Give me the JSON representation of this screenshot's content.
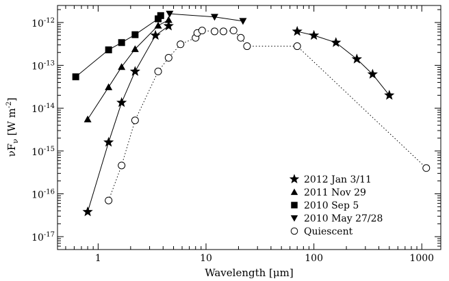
{
  "chart_data": {
    "type": "scatter",
    "xlabel": "Wavelength [μm]",
    "ylabel": "νF",
    "ylabel_sub": "ν",
    "ylabel_unit": " [W m",
    "ylabel_sup": "-2",
    "ylabel_close": "]",
    "xscale": "log",
    "yscale": "log",
    "xlim": [
      0.42,
      1500
    ],
    "ylim": [
      5e-18,
      2.5e-12
    ],
    "x_ticks": [
      {
        "value": 1,
        "label": "1"
      },
      {
        "value": 10,
        "label": "10"
      },
      {
        "value": 100,
        "label": "100"
      },
      {
        "value": 1000,
        "label": "1000"
      }
    ],
    "y_ticks": [
      {
        "value": 1e-17,
        "base": "10",
        "exp": "-17"
      },
      {
        "value": 1e-16,
        "base": "10",
        "exp": "-16"
      },
      {
        "value": 1e-15,
        "base": "10",
        "exp": "-15"
      },
      {
        "value": 1e-14,
        "base": "10",
        "exp": "-14"
      },
      {
        "value": 1e-13,
        "base": "10",
        "exp": "-13"
      },
      {
        "value": 1e-12,
        "base": "10",
        "exp": "-12"
      }
    ],
    "grid": false,
    "legend_position": "bottom-right",
    "series": [
      {
        "name": "2012 Jan 3/11",
        "marker": "star",
        "line": "solid",
        "segments": [
          [
            [
              0.8,
              3.8e-17
            ],
            [
              1.25,
              1.6e-15
            ],
            [
              1.65,
              1.35e-14
            ],
            [
              2.2,
              7.2e-14
            ],
            [
              3.4,
              5e-13
            ],
            [
              4.5,
              8.3e-13
            ]
          ],
          [
            [
              70,
              6.2e-13
            ],
            [
              100,
              5e-13
            ],
            [
              160,
              3.4e-13
            ],
            [
              250,
              1.4e-13
            ],
            [
              350,
              6.2e-14
            ],
            [
              500,
              2e-14
            ]
          ]
        ]
      },
      {
        "name": "2011 Nov 29",
        "marker": "triangle-up",
        "line": "solid",
        "segments": [
          [
            [
              0.8,
              5.5e-15
            ],
            [
              1.25,
              3.1e-14
            ],
            [
              1.65,
              9.2e-14
            ],
            [
              2.2,
              2.4e-13
            ],
            [
              3.6,
              8.5e-13
            ],
            [
              4.5,
              1.15e-12
            ]
          ]
        ]
      },
      {
        "name": "2010 Sep 5",
        "marker": "square",
        "line": "solid",
        "segments": [
          [
            [
              0.62,
              5.4e-14
            ],
            [
              1.25,
              2.3e-13
            ],
            [
              1.65,
              3.4e-13
            ],
            [
              2.2,
              5.2e-13
            ],
            [
              3.6,
              1.22e-12
            ],
            [
              3.8,
              1.45e-12
            ]
          ]
        ]
      },
      {
        "name": "2010 May 27/28",
        "marker": "triangle-down",
        "line": "solid",
        "segments": [
          [
            [
              4.6,
              1.6e-12
            ],
            [
              12,
              1.35e-12
            ],
            [
              22,
              1.08e-12
            ]
          ]
        ]
      },
      {
        "name": "Quiescent",
        "marker": "open-circle",
        "line": "dotted",
        "segments": [
          [
            [
              1.25,
              7e-17
            ],
            [
              1.65,
              4.6e-16
            ],
            [
              2.2,
              5.2e-15
            ],
            [
              3.6,
              7.2e-14
            ],
            [
              4.5,
              1.5e-13
            ],
            [
              5.8,
              3.1e-13
            ],
            [
              8,
              4.4e-13
            ],
            [
              8.3,
              5.7e-13
            ],
            [
              9.2,
              6.5e-13
            ],
            [
              12,
              6.2e-13
            ],
            [
              14.5,
              6.2e-13
            ],
            [
              18,
              6.5e-13
            ],
            [
              21,
              4.4e-13
            ],
            [
              24,
              2.8e-13
            ],
            [
              70,
              2.8e-13
            ],
            [
              1100,
              4e-16
            ]
          ]
        ]
      }
    ]
  }
}
